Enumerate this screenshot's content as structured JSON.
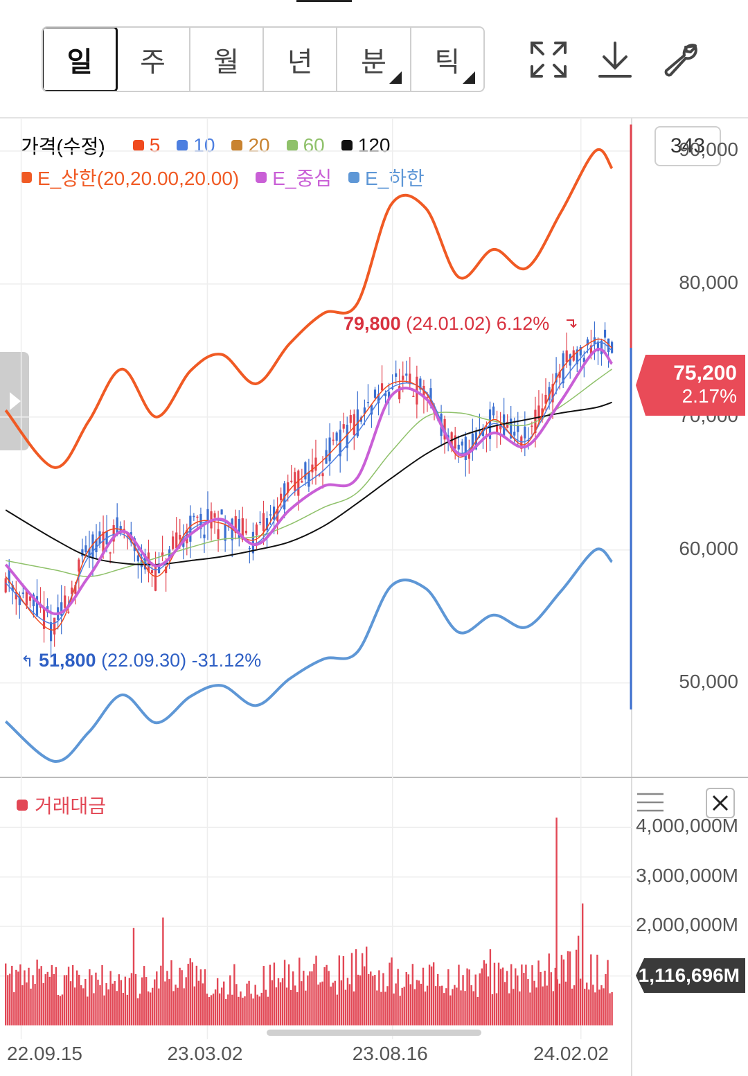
{
  "periods": [
    {
      "label": "일",
      "active": true,
      "has_menu": false
    },
    {
      "label": "주",
      "active": false,
      "has_menu": false
    },
    {
      "label": "월",
      "active": false,
      "has_menu": false
    },
    {
      "label": "년",
      "active": false,
      "has_menu": false
    },
    {
      "label": "분",
      "active": false,
      "has_menu": true
    },
    {
      "label": "틱",
      "active": false,
      "has_menu": true
    }
  ],
  "toolbar": {
    "icons": [
      "fullscreen-icon",
      "download-icon",
      "wrench-icon"
    ]
  },
  "legend": {
    "price_label": "가격(수정)",
    "ma": [
      {
        "label": "5",
        "color": "#f04a1e"
      },
      {
        "label": "10",
        "color": "#4d7fe0"
      },
      {
        "label": "20",
        "color": "#c98330"
      },
      {
        "label": "60",
        "color": "#8fc16a"
      },
      {
        "label": "120",
        "color": "#111111"
      }
    ],
    "envelope": [
      {
        "label": "E_상한(20,20.00,20.00)",
        "color": "#f05a24"
      },
      {
        "label": "E_중심",
        "color": "#c95fd6"
      },
      {
        "label": "E_하한",
        "color": "#5e97d6"
      }
    ]
  },
  "side_box": "343",
  "current_price": {
    "value": "75,200",
    "change": "2.17%"
  },
  "annotations": {
    "high": {
      "value": "79,800",
      "detail": "(24.01.02) 6.12%"
    },
    "low": {
      "value": "51,800",
      "detail": "(22.09.30) -31.12%"
    }
  },
  "volume": {
    "label": "거래대금",
    "current": "1,116,696M",
    "color": "#e24755"
  },
  "chart_data": [
    {
      "type": "line",
      "title": "가격(수정)",
      "x_tick_labels": [
        "22.09.15",
        "23.03.02",
        "23.08.16",
        "24.02.02"
      ],
      "y_tick_labels": [
        "50,000",
        "60,000",
        "70,000",
        "80,000",
        "90,000"
      ],
      "ylim": [
        43000,
        92500
      ],
      "grid": true,
      "x": [
        "2022-09-01",
        "2022-10-15",
        "2022-11-15",
        "2022-12-15",
        "2023-01-15",
        "2023-02-15",
        "2023-03-15",
        "2023-04-15",
        "2023-05-15",
        "2023-06-15",
        "2023-07-15",
        "2023-08-15",
        "2023-09-15",
        "2023-10-15",
        "2023-11-15",
        "2023-12-15",
        "2024-01-15",
        "2024-02-15",
        "2024-03-01"
      ],
      "series": [
        {
          "name": "E_상한(20,20.00,20.00)",
          "color": "#f05a24",
          "values": [
            70500,
            66200,
            69700,
            73600,
            70000,
            73500,
            74700,
            72500,
            75500,
            77800,
            78500,
            86000,
            85700,
            80500,
            82600,
            81200,
            85400,
            90000,
            88700
          ]
        },
        {
          "name": "E_중심",
          "color": "#c95fd6",
          "values": [
            58900,
            55200,
            58000,
            61400,
            58800,
            61200,
            62300,
            60400,
            63000,
            64800,
            65400,
            71600,
            71400,
            67200,
            68800,
            67800,
            71200,
            75000,
            74000
          ]
        },
        {
          "name": "E_하한",
          "color": "#5e97d6",
          "values": [
            47100,
            44100,
            46300,
            49100,
            47000,
            49000,
            49800,
            48300,
            50300,
            51800,
            52300,
            57300,
            57100,
            53800,
            55100,
            54200,
            56900,
            60000,
            59100
          ]
        },
        {
          "name": "5",
          "color": "#f04a1e",
          "values": [
            58000,
            54000,
            60000,
            61500,
            58000,
            61800,
            62000,
            60800,
            64500,
            66800,
            69500,
            72500,
            71800,
            67000,
            69800,
            68000,
            73500,
            75800,
            75200
          ]
        },
        {
          "name": "10",
          "color": "#4d7fe0",
          "values": [
            57500,
            54500,
            59500,
            61200,
            58500,
            61500,
            62200,
            60500,
            64000,
            66000,
            68800,
            72200,
            71900,
            67300,
            69500,
            68200,
            72500,
            75500,
            75000
          ]
        },
        {
          "name": "20",
          "color": "#c98330",
          "values": [
            58900,
            55200,
            58000,
            61400,
            58800,
            61200,
            62300,
            60400,
            63000,
            64800,
            65400,
            71600,
            71400,
            67200,
            68800,
            67800,
            71200,
            75000,
            74000
          ]
        },
        {
          "name": "60",
          "color": "#8fc16a",
          "values": [
            59200,
            58500,
            58000,
            58600,
            59400,
            60200,
            60800,
            61000,
            61900,
            63200,
            64300,
            67400,
            70000,
            70300,
            69700,
            69400,
            70800,
            72700,
            73600
          ]
        },
        {
          "name": "120",
          "color": "#111111",
          "values": [
            63000,
            60800,
            59500,
            59000,
            58900,
            59200,
            59500,
            60000,
            60600,
            61800,
            63500,
            65400,
            67200,
            68500,
            69300,
            69800,
            70300,
            70700,
            71100
          ]
        }
      ]
    },
    {
      "type": "bar",
      "title": "거래대금",
      "y_tick_labels": [
        "2,000,000M",
        "3,000,000M",
        "4,000,000M"
      ],
      "ylim": [
        0,
        4200000
      ],
      "unit": "M",
      "x": [
        "2022-09",
        "2022-10",
        "2022-11",
        "2022-12",
        "2023-01",
        "2023-02",
        "2023-03",
        "2023-04",
        "2023-05",
        "2023-06",
        "2023-07",
        "2023-08",
        "2023-09",
        "2023-10",
        "2023-11",
        "2023-12",
        "2024-01",
        "2024-02"
      ],
      "values": [
        1150000,
        1050000,
        1000000,
        900000,
        950000,
        1150000,
        900000,
        850000,
        1200000,
        1050000,
        1250000,
        1100000,
        1000000,
        950000,
        1050000,
        1000000,
        1300000,
        1116696
      ],
      "peak": {
        "x": "2024-01-11",
        "value": 4200000
      }
    }
  ]
}
